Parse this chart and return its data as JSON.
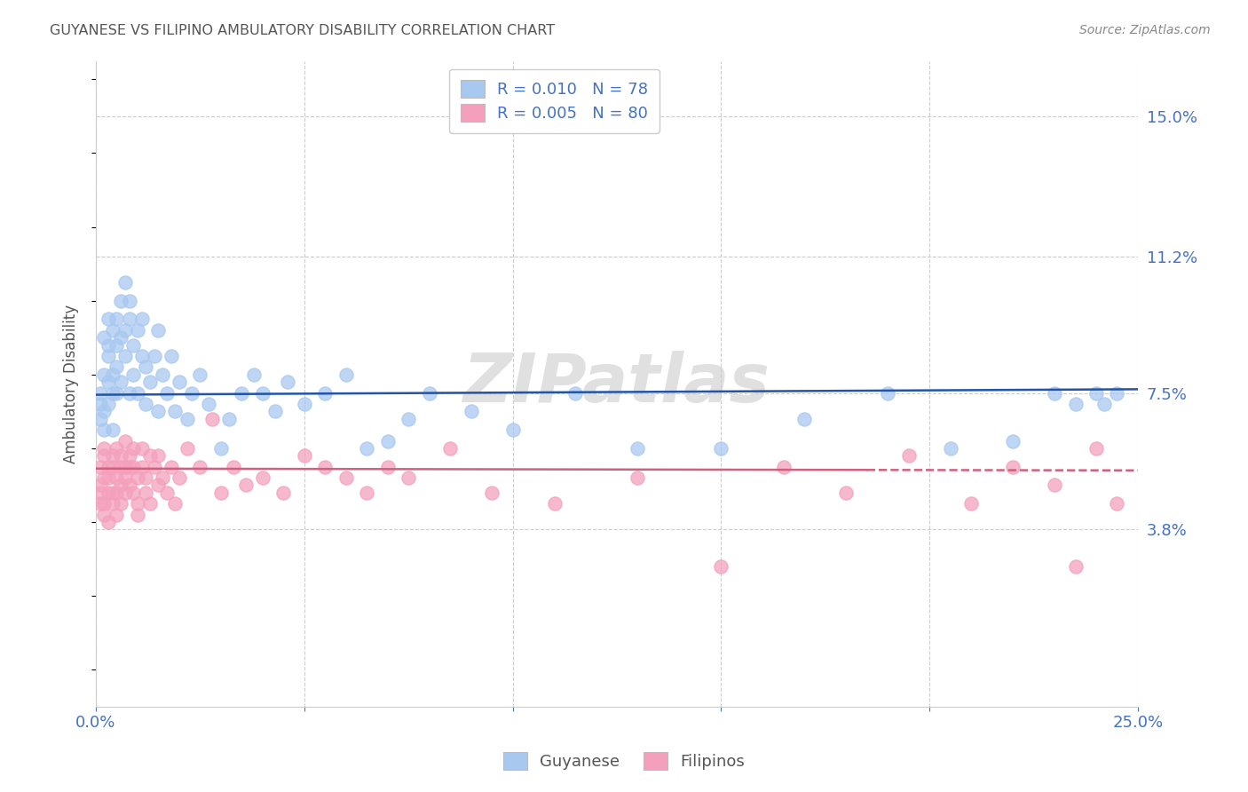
{
  "title": "GUYANESE VS FILIPINO AMBULATORY DISABILITY CORRELATION CHART",
  "source": "Source: ZipAtlas.com",
  "ylabel": "Ambulatory Disability",
  "xlim": [
    0.0,
    0.25
  ],
  "ylim": [
    -0.01,
    0.165
  ],
  "xticks": [
    0.0,
    0.05,
    0.1,
    0.15,
    0.2,
    0.25
  ],
  "xticklabels": [
    "0.0%",
    "",
    "",
    "",
    "",
    "25.0%"
  ],
  "yticks_right": [
    0.038,
    0.075,
    0.112,
    0.15
  ],
  "yticks_right_labels": [
    "3.8%",
    "7.5%",
    "11.2%",
    "15.0%"
  ],
  "blue_color": "#A8C8F0",
  "pink_color": "#F4A0BC",
  "blue_line_color": "#2255AA",
  "pink_line_color": "#D06080",
  "axis_color": "#4472C4",
  "watermark": "ZIPatlas",
  "background_color": "#FFFFFF",
  "grid_color": "#CCCCCC",
  "legend_R_blue": "0.010",
  "legend_N_blue": "78",
  "legend_R_pink": "0.005",
  "legend_N_pink": "80",
  "guyanese_x": [
    0.001,
    0.001,
    0.001,
    0.002,
    0.002,
    0.002,
    0.002,
    0.003,
    0.003,
    0.003,
    0.003,
    0.003,
    0.004,
    0.004,
    0.004,
    0.004,
    0.005,
    0.005,
    0.005,
    0.005,
    0.006,
    0.006,
    0.006,
    0.007,
    0.007,
    0.007,
    0.008,
    0.008,
    0.008,
    0.009,
    0.009,
    0.01,
    0.01,
    0.011,
    0.011,
    0.012,
    0.012,
    0.013,
    0.014,
    0.015,
    0.015,
    0.016,
    0.017,
    0.018,
    0.019,
    0.02,
    0.022,
    0.023,
    0.025,
    0.027,
    0.03,
    0.032,
    0.035,
    0.038,
    0.04,
    0.043,
    0.046,
    0.05,
    0.055,
    0.06,
    0.065,
    0.07,
    0.075,
    0.08,
    0.09,
    0.1,
    0.115,
    0.13,
    0.15,
    0.17,
    0.19,
    0.205,
    0.22,
    0.23,
    0.235,
    0.24,
    0.242,
    0.245
  ],
  "guyanese_y": [
    0.072,
    0.075,
    0.068,
    0.08,
    0.065,
    0.09,
    0.07,
    0.095,
    0.078,
    0.072,
    0.085,
    0.088,
    0.08,
    0.092,
    0.075,
    0.065,
    0.088,
    0.075,
    0.095,
    0.082,
    0.1,
    0.078,
    0.09,
    0.105,
    0.085,
    0.092,
    0.095,
    0.1,
    0.075,
    0.088,
    0.08,
    0.092,
    0.075,
    0.095,
    0.085,
    0.082,
    0.072,
    0.078,
    0.085,
    0.092,
    0.07,
    0.08,
    0.075,
    0.085,
    0.07,
    0.078,
    0.068,
    0.075,
    0.08,
    0.072,
    0.06,
    0.068,
    0.075,
    0.08,
    0.075,
    0.07,
    0.078,
    0.072,
    0.075,
    0.08,
    0.06,
    0.062,
    0.068,
    0.075,
    0.07,
    0.065,
    0.075,
    0.06,
    0.06,
    0.068,
    0.075,
    0.06,
    0.062,
    0.075,
    0.072,
    0.075,
    0.072,
    0.075
  ],
  "filipino_x": [
    0.001,
    0.001,
    0.001,
    0.001,
    0.002,
    0.002,
    0.002,
    0.002,
    0.002,
    0.003,
    0.003,
    0.003,
    0.003,
    0.004,
    0.004,
    0.004,
    0.004,
    0.005,
    0.005,
    0.005,
    0.005,
    0.006,
    0.006,
    0.006,
    0.006,
    0.007,
    0.007,
    0.007,
    0.007,
    0.008,
    0.008,
    0.008,
    0.009,
    0.009,
    0.009,
    0.01,
    0.01,
    0.01,
    0.011,
    0.011,
    0.012,
    0.012,
    0.013,
    0.013,
    0.014,
    0.015,
    0.015,
    0.016,
    0.017,
    0.018,
    0.019,
    0.02,
    0.022,
    0.025,
    0.028,
    0.03,
    0.033,
    0.036,
    0.04,
    0.045,
    0.05,
    0.055,
    0.06,
    0.065,
    0.07,
    0.075,
    0.085,
    0.095,
    0.11,
    0.13,
    0.15,
    0.165,
    0.18,
    0.195,
    0.21,
    0.22,
    0.23,
    0.235,
    0.24,
    0.245
  ],
  "filipino_y": [
    0.05,
    0.055,
    0.048,
    0.045,
    0.058,
    0.052,
    0.045,
    0.042,
    0.06,
    0.055,
    0.048,
    0.052,
    0.04,
    0.058,
    0.055,
    0.048,
    0.045,
    0.06,
    0.052,
    0.048,
    0.042,
    0.058,
    0.055,
    0.05,
    0.045,
    0.062,
    0.055,
    0.052,
    0.048,
    0.058,
    0.055,
    0.05,
    0.055,
    0.06,
    0.048,
    0.052,
    0.045,
    0.042,
    0.055,
    0.06,
    0.052,
    0.048,
    0.058,
    0.045,
    0.055,
    0.058,
    0.05,
    0.052,
    0.048,
    0.055,
    0.045,
    0.052,
    0.06,
    0.055,
    0.068,
    0.048,
    0.055,
    0.05,
    0.052,
    0.048,
    0.058,
    0.055,
    0.052,
    0.048,
    0.055,
    0.052,
    0.06,
    0.048,
    0.045,
    0.052,
    0.028,
    0.055,
    0.048,
    0.058,
    0.045,
    0.055,
    0.05,
    0.028,
    0.06,
    0.045
  ],
  "pink_line_solid_end": 0.185,
  "blue_trend_start_y": 0.0745,
  "blue_trend_end_y": 0.076,
  "pink_trend_start_y": 0.0545,
  "pink_trend_end_y": 0.054
}
